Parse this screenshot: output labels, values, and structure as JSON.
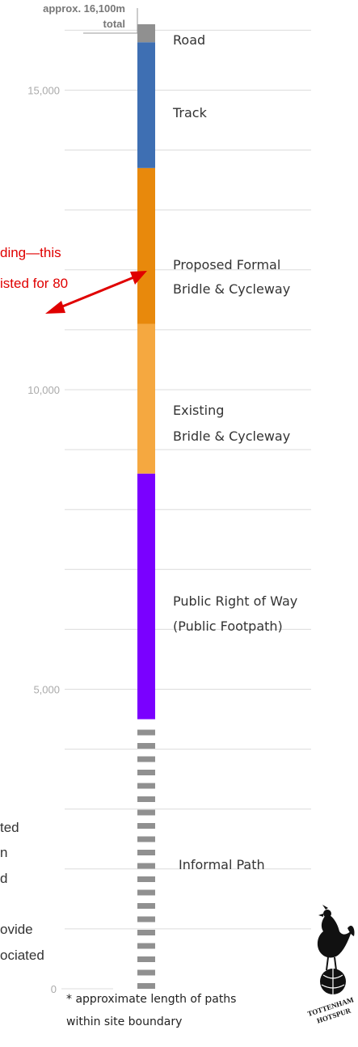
{
  "chart_data": {
    "type": "bar",
    "orientation": "vertical-stacked",
    "total_label": [
      "approx. 16,100m",
      "total"
    ],
    "ylim": [
      0,
      16100
    ],
    "ticks": [
      0,
      5000,
      10000,
      15000
    ],
    "tick_labels": [
      "0",
      "5,000",
      "10,000",
      "15,000"
    ],
    "grid": true,
    "segments": [
      {
        "name": "Informal Path",
        "start": 0,
        "end": 4500,
        "color": "#909090",
        "dashed": true,
        "label_lines": [
          "Informal Path"
        ]
      },
      {
        "name": "Public Right of Way (Public Footpath)",
        "start": 4500,
        "end": 8600,
        "color": "#7a00ff",
        "label_lines": [
          "Public Right of Way",
          "(Public Footpath)"
        ]
      },
      {
        "name": "Existing Bridle & Cycleway",
        "start": 8600,
        "end": 11100,
        "color": "#f5a840",
        "label_lines": [
          "Existing",
          "Bridle & Cycleway"
        ]
      },
      {
        "name": "Proposed Formal Bridle & Cycleway",
        "start": 11100,
        "end": 13700,
        "color": "#e8890c",
        "label_lines": [
          "Proposed Formal",
          "Bridle & Cycleway"
        ]
      },
      {
        "name": "Track",
        "start": 13700,
        "end": 15800,
        "color": "#3e6fb3",
        "label_lines": [
          "Track"
        ]
      },
      {
        "name": "Road",
        "start": 15800,
        "end": 16100,
        "color": "#909090",
        "label_lines": [
          "Road"
        ]
      }
    ],
    "footnote": [
      "* approximate length of paths",
      "within site boundary"
    ]
  },
  "overlay": {
    "red_text": [
      "ding—this",
      "isted for 80"
    ],
    "left_text": [
      "ted",
      "n",
      "d",
      "ovide",
      "ociated"
    ],
    "colors": {
      "annotation": "#e00000",
      "grid": "#dcdcdc",
      "tick_text": "#aaaaaa"
    }
  },
  "logo": {
    "icon": "cockerel-on-ball-icon",
    "text_lines": [
      "TOTTENHAM",
      "HOTSPUR"
    ]
  }
}
